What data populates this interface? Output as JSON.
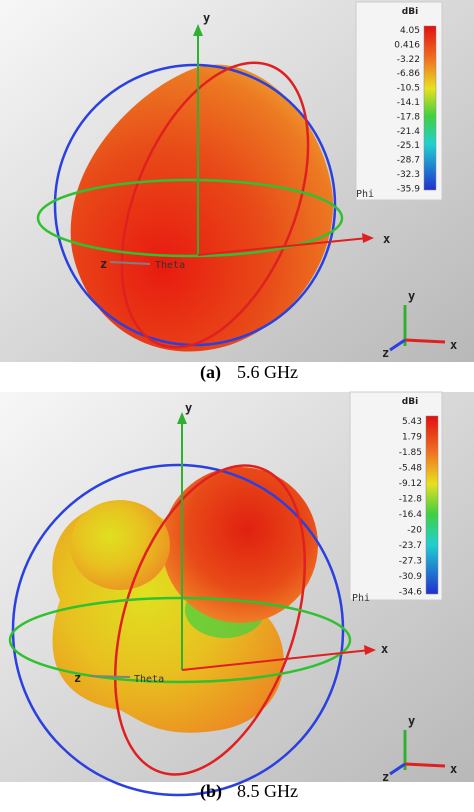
{
  "panels": [
    {
      "label": "(a)",
      "caption": "5.6 GHz",
      "unit": "dBi",
      "scale": [
        "4.05",
        "0.416",
        "-3.22",
        "-6.86",
        "-10.5",
        "-14.1",
        "-17.8",
        "-21.4",
        "-25.1",
        "-28.7",
        "-32.3",
        "-35.9"
      ],
      "axes": [
        "x",
        "y",
        "z"
      ],
      "phi": "Phi",
      "theta": "Theta",
      "triad": [
        "x",
        "y",
        "z"
      ]
    },
    {
      "label": "(b)",
      "caption": "8.5 GHz",
      "unit": "dBi",
      "scale": [
        "5.43",
        "1.79",
        "-1.85",
        "-5.48",
        "-9.12",
        "-12.8",
        "-16.4",
        "-20",
        "-23.7",
        "-27.3",
        "-30.9",
        "-34.6"
      ],
      "axes": [
        "x",
        "y",
        "z"
      ],
      "phi": "Phi",
      "theta": "Theta",
      "triad": [
        "x",
        "y",
        "z"
      ]
    }
  ]
}
